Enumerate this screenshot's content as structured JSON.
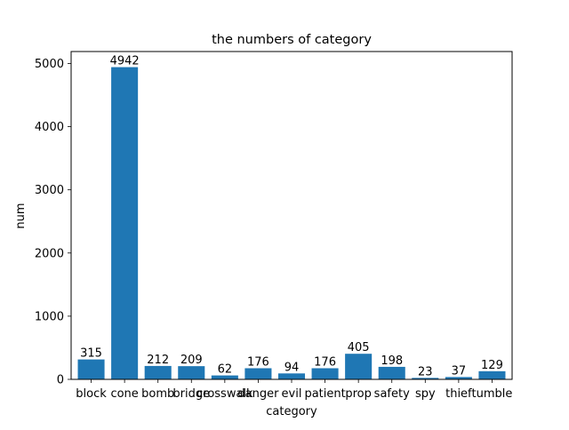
{
  "chart_data": {
    "type": "bar",
    "title": "the numbers of category",
    "xlabel": "category",
    "ylabel": "num",
    "categories": [
      "block",
      "cone",
      "bomb",
      "bridge",
      "crosswalk",
      "danger",
      "evil",
      "patient",
      "prop",
      "safety",
      "spy",
      "thief",
      "tumble"
    ],
    "values": [
      315,
      4942,
      212,
      209,
      62,
      176,
      94,
      176,
      405,
      198,
      23,
      37,
      129
    ],
    "data_labels": [
      "315",
      "4942",
      "212",
      "209",
      "62",
      "176",
      "94",
      "176",
      "405",
      "198",
      "23",
      "37",
      "129"
    ],
    "ylim": [
      0,
      5189.1
    ],
    "yticks": [
      0,
      1000,
      2000,
      3000,
      4000,
      5000
    ],
    "ytick_labels": [
      "0",
      "1000",
      "2000",
      "3000",
      "4000",
      "5000"
    ],
    "grid": false,
    "bar_color": "#1f77b4"
  }
}
